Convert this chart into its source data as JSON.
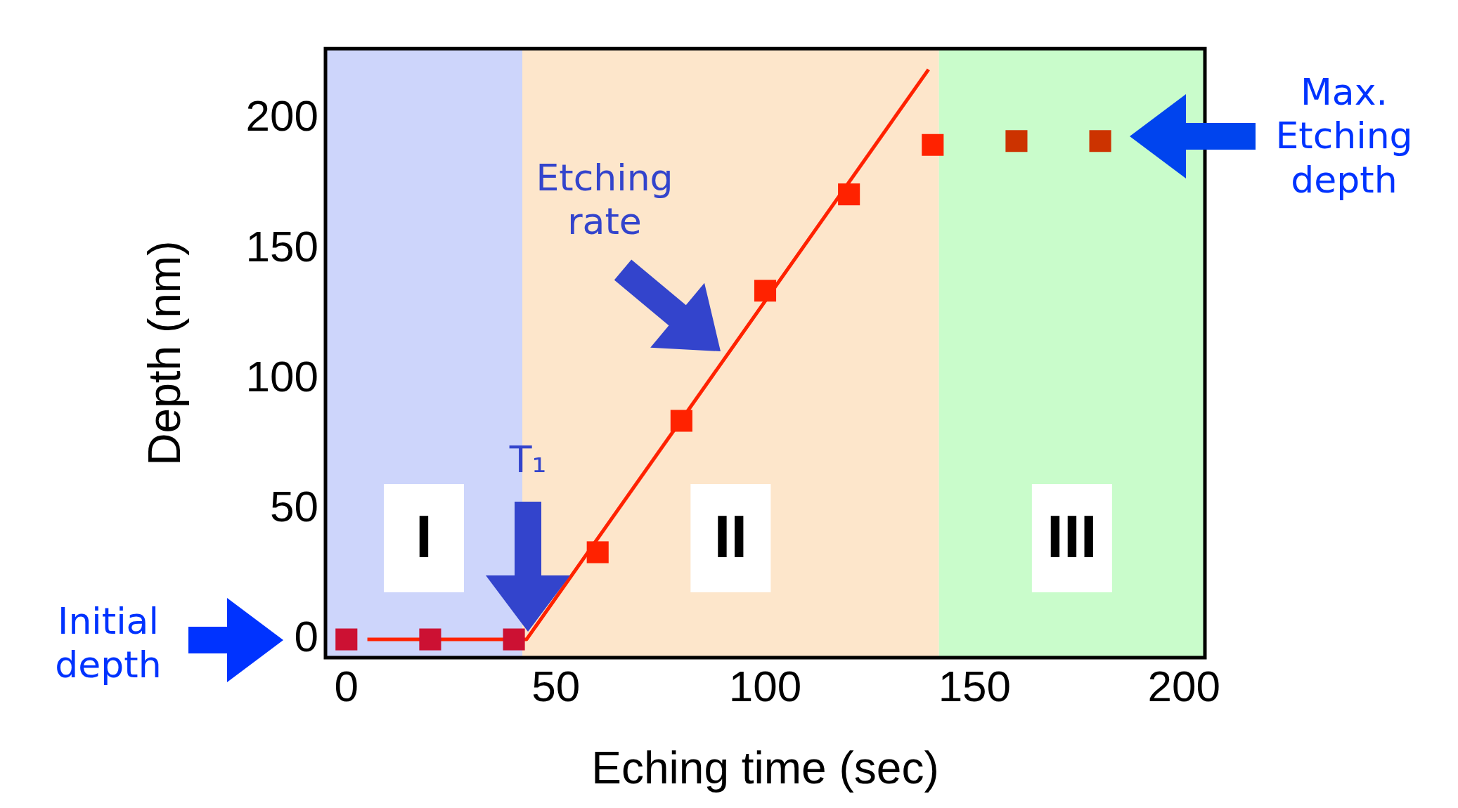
{
  "chart_data": {
    "type": "scatter",
    "xlabel": "Eching time (sec)",
    "ylabel": "Depth (nm)",
    "xlim": [
      -5,
      205
    ],
    "ylim": [
      -7,
      227
    ],
    "xticks": [
      0,
      50,
      100,
      150,
      200
    ],
    "yticks": [
      0,
      50,
      100,
      150,
      200
    ],
    "legend": false,
    "marker": "square",
    "series": [
      {
        "type": "line",
        "x": [
          5,
          43,
          139
        ],
        "values": [
          0,
          0,
          219
        ],
        "color": "#ff2200",
        "marker": "none"
      },
      {
        "type": "scatter",
        "x": [
          0,
          20,
          40,
          60,
          80,
          100,
          120,
          140,
          160,
          180
        ],
        "values": [
          0,
          0,
          0,
          33.5,
          84,
          134,
          171,
          190,
          191.5,
          191.5
        ],
        "color": "#ff2200",
        "colors": [
          "#cc1133",
          "#cc1133",
          "#cc1133",
          "#ff2200",
          "#ff2200",
          "#ff2200",
          "#ff2200",
          "#ff2200",
          "#cc3300",
          "#cc3300"
        ]
      }
    ],
    "bands": [
      {
        "axis": "x",
        "from": -5,
        "to": 42,
        "label": "I",
        "color": "#cdd5fb"
      },
      {
        "axis": "x",
        "from": 42,
        "to": 141.5,
        "label": "II",
        "color": "#fde6cb"
      },
      {
        "axis": "x",
        "from": 141.5,
        "to": 205,
        "label": "III",
        "color": "#c9fccb"
      }
    ],
    "annotations": [
      "Initial depth",
      "T₁",
      "Etching rate",
      "Max. Etching depth"
    ]
  }
}
